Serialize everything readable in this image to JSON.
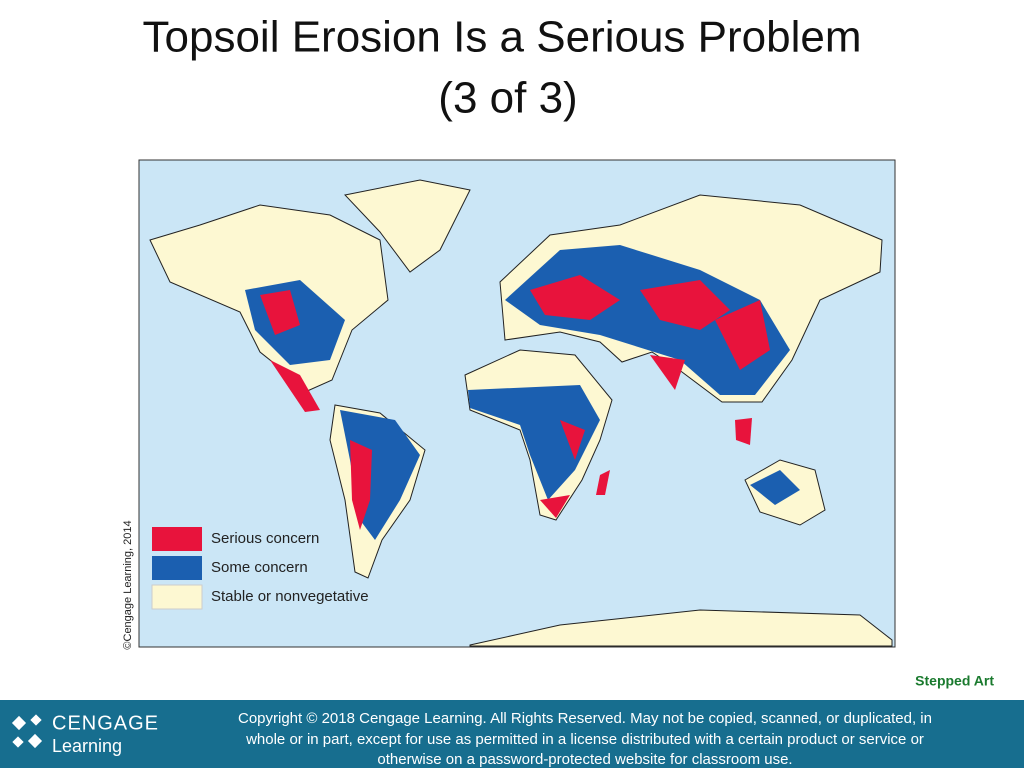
{
  "header": {
    "title_lines": [
      "Topsoil Erosion Is a Serious Problem",
      "(3 of 3)"
    ]
  },
  "map": {
    "credit": "©Cengage Learning, 2014",
    "legend": [
      {
        "label": "Serious concern",
        "color": "#e8133c"
      },
      {
        "label": "Some concern",
        "color": "#1b5fb0"
      },
      {
        "label": "Stable or nonvegetative",
        "color": "#fdf8d2"
      }
    ]
  },
  "stepped_art": "Stepped Art",
  "footer": {
    "logo_top": "CENGAGE",
    "logo_bottom": "Learning",
    "copyright_lines": [
      "Copyright © 2018 Cengage Learning. All Rights Reserved. May not be copied, scanned, or duplicated, in",
      "whole or in part, except for use as permitted in a license distributed with a certain product or service or",
      "otherwise on a password-protected website for classroom use."
    ]
  }
}
